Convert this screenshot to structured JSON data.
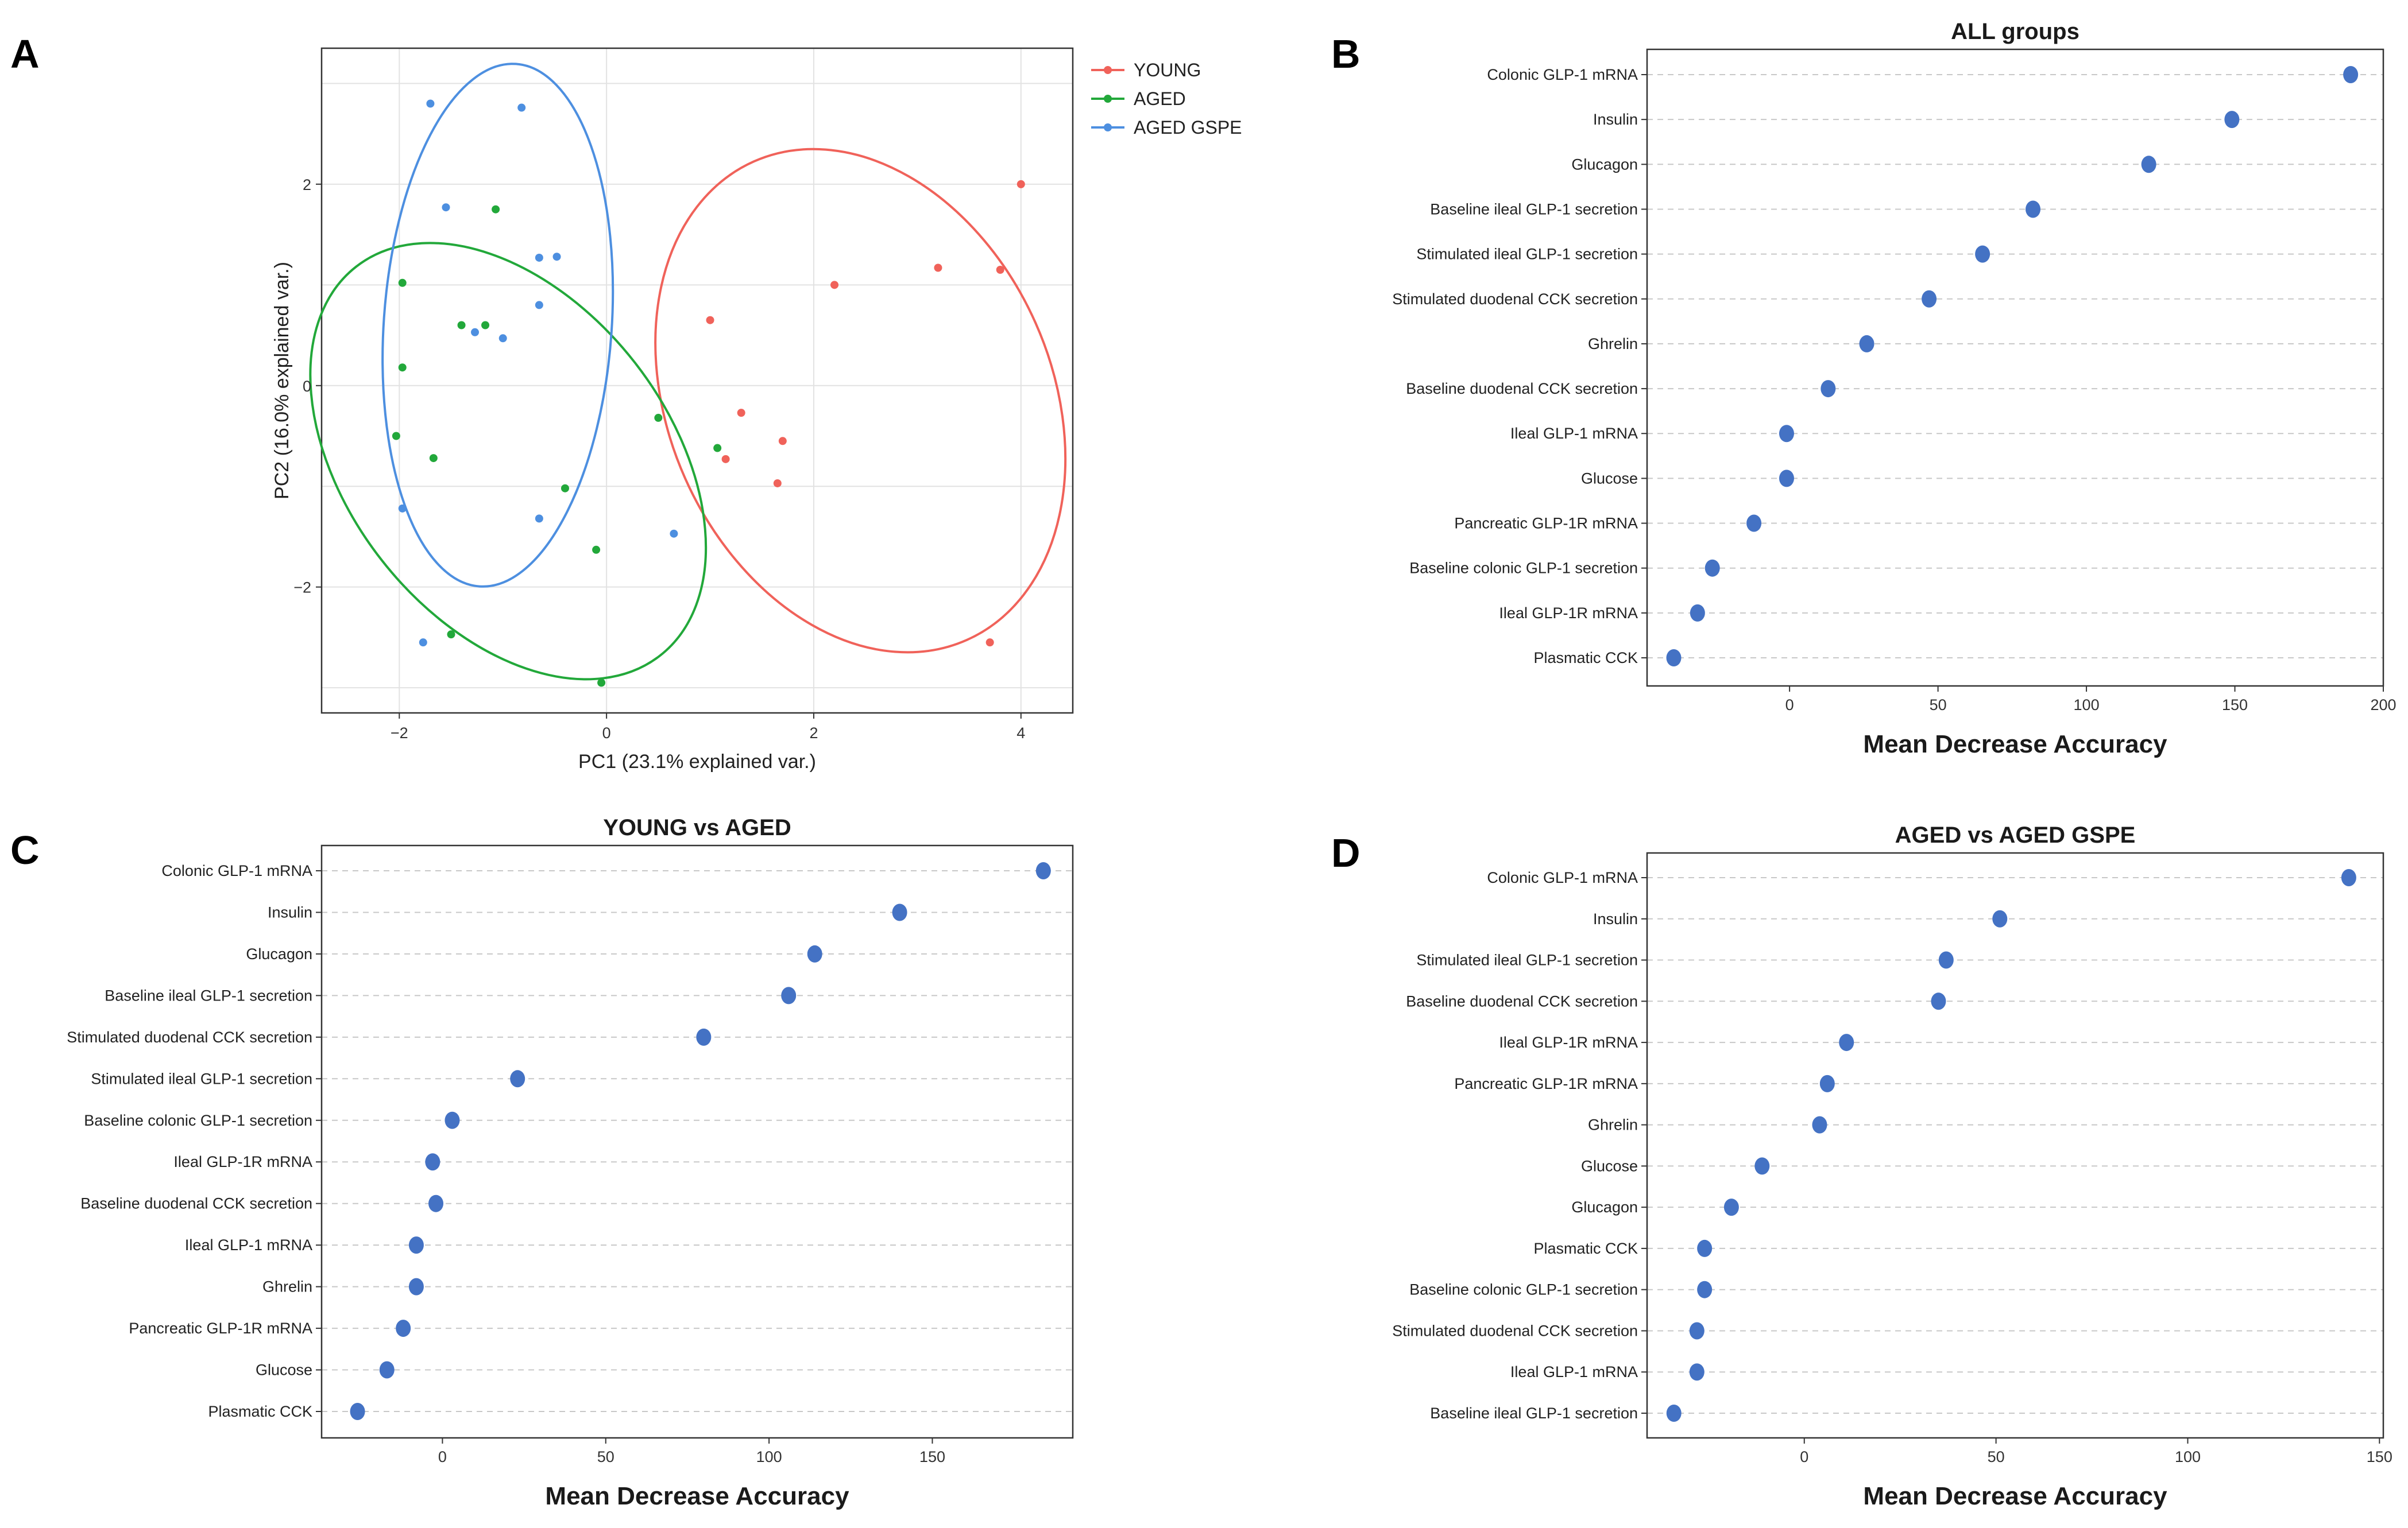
{
  "panel_letters": {
    "a": "A",
    "b": "B",
    "c": "C",
    "d": "D"
  },
  "chart_data": [
    {
      "id": "A",
      "type": "scatter",
      "title": "",
      "xlabel": "PC1 (23.1% explained var.)",
      "ylabel": "PC2 (16.0% explained var.)",
      "xlim": [
        -2.75,
        4.5
      ],
      "ylim": [
        -3.25,
        3.35
      ],
      "xticks": [
        -2,
        0,
        2,
        4
      ],
      "yticks": [
        -2,
        0,
        2
      ],
      "grid": true,
      "legend_position": "top-right",
      "series": [
        {
          "name": "YOUNG",
          "color": "#f0625a",
          "points": [
            [
              4.0,
              2.0
            ],
            [
              3.2,
              1.17
            ],
            [
              3.8,
              1.15
            ],
            [
              2.2,
              1.0
            ],
            [
              1.0,
              0.65
            ],
            [
              1.3,
              -0.27
            ],
            [
              1.7,
              -0.55
            ],
            [
              1.65,
              -0.97
            ],
            [
              1.15,
              -0.73
            ],
            [
              3.7,
              -2.55
            ]
          ],
          "ellipse": {
            "cx": 2.45,
            "cy": -0.15,
            "rx": 1.85,
            "ry": 2.6,
            "angle_deg": 24
          }
        },
        {
          "name": "AGED",
          "color": "#22a83a",
          "points": [
            [
              -1.07,
              1.75
            ],
            [
              -1.97,
              1.02
            ],
            [
              -1.4,
              0.6
            ],
            [
              -1.17,
              0.6
            ],
            [
              -1.97,
              0.18
            ],
            [
              -2.03,
              -0.5
            ],
            [
              -1.67,
              -0.72
            ],
            [
              -0.4,
              -1.02
            ],
            [
              -0.1,
              -1.63
            ],
            [
              0.5,
              -0.32
            ],
            [
              1.07,
              -0.62
            ],
            [
              -1.5,
              -2.47
            ],
            [
              -0.05,
              -2.95
            ]
          ],
          "ellipse": {
            "cx": -0.95,
            "cy": -0.75,
            "rx": 1.55,
            "ry": 2.45,
            "angle_deg": 38
          }
        },
        {
          "name": "AGED GSPE",
          "color": "#4d8fe0",
          "points": [
            [
              -1.7,
              2.8
            ],
            [
              -0.82,
              2.76
            ],
            [
              -1.55,
              1.77
            ],
            [
              -0.65,
              1.27
            ],
            [
              -0.48,
              1.28
            ],
            [
              -0.65,
              0.8
            ],
            [
              -1.27,
              0.53
            ],
            [
              -1.0,
              0.47
            ],
            [
              -1.97,
              -1.22
            ],
            [
              -0.65,
              -1.32
            ],
            [
              0.65,
              -1.47
            ],
            [
              -1.77,
              -2.55
            ]
          ],
          "ellipse": {
            "cx": -1.05,
            "cy": 0.6,
            "rx": 1.1,
            "ry": 2.6,
            "angle_deg": -4
          }
        }
      ]
    },
    {
      "id": "B",
      "type": "scatter",
      "title": "ALL groups",
      "xlabel": "Mean Decrease Accuracy",
      "ylabel": "",
      "xlim": [
        -48,
        200
      ],
      "xticks": [
        0,
        50,
        100,
        150,
        200
      ],
      "color": "#4472c4",
      "categories": [
        "Colonic GLP-1 mRNA",
        "Insulin",
        "Glucagon",
        "Baseline ileal GLP-1 secretion",
        "Stimulated ileal GLP-1 secretion",
        "Stimulated duodenal CCK secretion",
        "Ghrelin",
        "Baseline duodenal CCK secretion",
        "Ileal GLP-1 mRNA",
        "Glucose",
        "Pancreatic GLP-1R mRNA",
        "Baseline colonic GLP-1 secretion",
        "Ileal GLP-1R mRNA",
        "Plasmatic CCK"
      ],
      "values": [
        189,
        149,
        121,
        82,
        65,
        47,
        26,
        13,
        -1,
        -1,
        -12,
        -26,
        -31,
        -39
      ]
    },
    {
      "id": "C",
      "type": "scatter",
      "title": "YOUNG vs AGED",
      "xlabel": "Mean Decrease Accuracy",
      "ylabel": "",
      "xlim": [
        -37,
        193
      ],
      "xticks": [
        0,
        50,
        100,
        150
      ],
      "color": "#4472c4",
      "categories": [
        "Colonic GLP-1 mRNA",
        "Insulin",
        "Glucagon",
        "Baseline ileal GLP-1 secretion",
        "Stimulated duodenal CCK secretion",
        "Stimulated ileal GLP-1 secretion",
        "Baseline colonic GLP-1 secretion",
        "Ileal GLP-1R mRNA",
        "Baseline duodenal CCK secretion",
        "Ileal GLP-1 mRNA",
        "Ghrelin",
        "Pancreatic GLP-1R mRNA",
        "Glucose",
        "Plasmatic CCK"
      ],
      "values": [
        184,
        140,
        114,
        106,
        80,
        23,
        3,
        -3,
        -2,
        -8,
        -8,
        -12,
        -17,
        -26
      ]
    },
    {
      "id": "D",
      "type": "scatter",
      "title": "AGED vs AGED GSPE",
      "xlabel": "Mean Decrease Accuracy",
      "ylabel": "",
      "xlim": [
        -41,
        151
      ],
      "xticks": [
        0,
        50,
        100,
        150
      ],
      "color": "#4472c4",
      "categories": [
        "Colonic GLP-1 mRNA",
        "Insulin",
        "Stimulated ileal GLP-1 secretion",
        "Baseline duodenal CCK secretion",
        "Ileal GLP-1R mRNA",
        "Pancreatic GLP-1R mRNA",
        "Ghrelin",
        "Glucose",
        "Glucagon",
        "Plasmatic CCK",
        "Baseline colonic GLP-1 secretion",
        "Stimulated duodenal CCK secretion",
        "Ileal GLP-1 mRNA",
        "Baseline ileal GLP-1 secretion"
      ],
      "values": [
        142,
        51,
        37,
        35,
        11,
        6,
        4,
        -11,
        -19,
        -26,
        -26,
        -28,
        -28,
        -34
      ]
    }
  ]
}
